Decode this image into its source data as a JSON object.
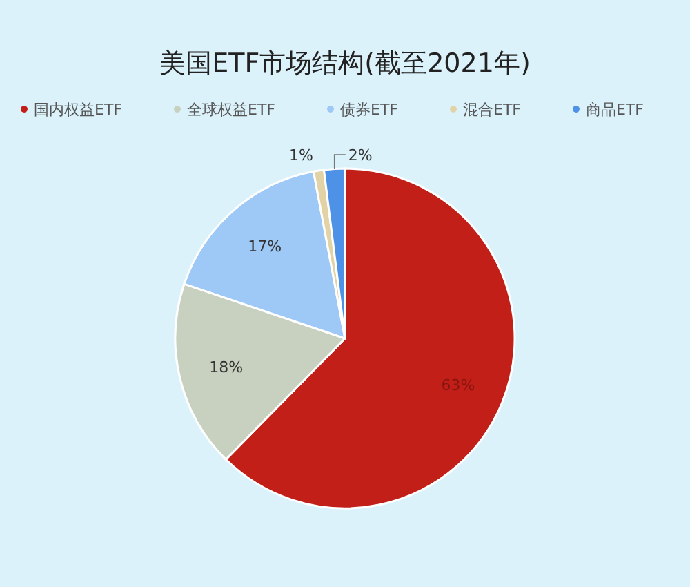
{
  "chart_data": {
    "type": "pie",
    "title": "美国ETF市场结构(截至2021年)",
    "categories": [
      "国内权益ETF",
      "全球权益ETF",
      "债券ETF",
      "混合ETF",
      "商品ETF"
    ],
    "values": [
      63,
      18,
      17,
      1,
      2
    ],
    "value_labels": [
      "63%",
      "18%",
      "17%",
      "1%",
      "2%"
    ],
    "colors": [
      "#c21f18",
      "#c8d0c0",
      "#9ec8f6",
      "#e2d3a6",
      "#4d92e6"
    ],
    "legend": "top"
  }
}
